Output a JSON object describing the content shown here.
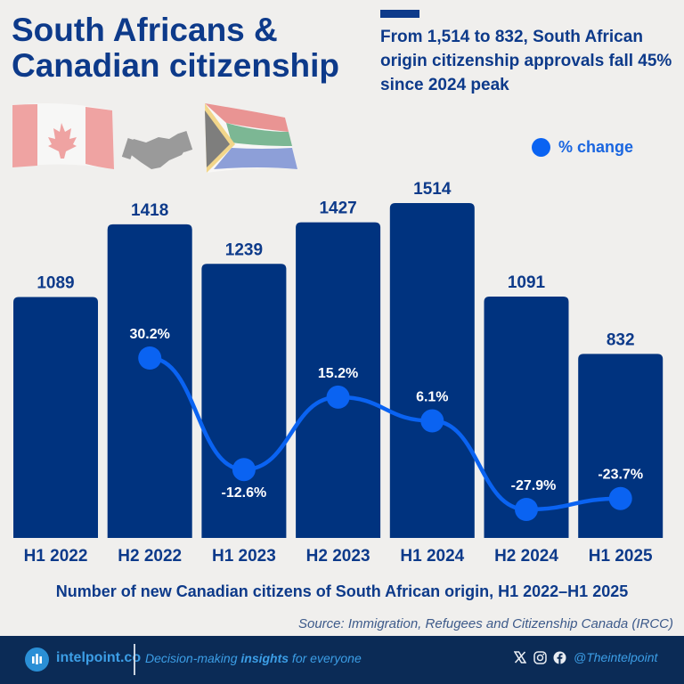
{
  "header": {
    "title_line1": "South Africans &",
    "title_line2": "Canadian citizenship",
    "subtitle": "From 1,514 to 832, South African origin citizenship approvals fall 45% since 2024 peak"
  },
  "icons": {
    "flag_left": "canada-flag",
    "handshake": "handshake",
    "flag_right": "south-africa-flag"
  },
  "legend": {
    "label": "% change"
  },
  "colors": {
    "bar": "#00337f",
    "line": "#0a63f2",
    "title": "#0d3a8a",
    "background": "#f0efed",
    "footer": "#0b2b56",
    "accent": "#3c9ee6"
  },
  "chart_data": {
    "type": "bar",
    "title": "South Africans & Canadian citizenship",
    "xlabel": "Number of new Canadian citizens of South African origin, H1 2022–H1 2025",
    "ylabel": "",
    "categories": [
      "H1 2022",
      "H2 2022",
      "H1 2023",
      "H2 2023",
      "H1 2024",
      "H2 2024",
      "H1 2025"
    ],
    "series": [
      {
        "name": "New citizens",
        "type": "bar",
        "values": [
          1089,
          1418,
          1239,
          1427,
          1514,
          1091,
          832
        ],
        "labels": [
          "1089",
          "1418",
          "1239",
          "1427",
          "1514",
          "1091",
          "832"
        ]
      },
      {
        "name": "% change",
        "type": "line",
        "values": [
          null,
          30.2,
          -12.6,
          15.2,
          6.1,
          -27.9,
          -23.7
        ],
        "labels": [
          "",
          "30.2%",
          "-12.6%",
          "15.2%",
          "6.1%",
          "-27.9%",
          "-23.7%"
        ]
      }
    ],
    "ylim": [
      0,
      1514
    ],
    "grid": false,
    "legend": "top-right"
  },
  "footnote": {
    "source": "Source: Immigration, Refugees and Citizenship Canada (IRCC)"
  },
  "footer": {
    "brand": "intelpoint.co",
    "tagline_pre": "Decision-making ",
    "tagline_bold": "insights",
    "tagline_post": " for everyone",
    "handle": "@Theintelpoint"
  }
}
